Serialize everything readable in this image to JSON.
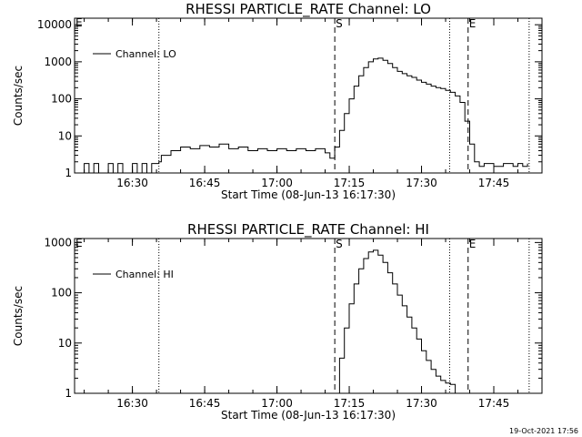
{
  "footer_timestamp": "19-Oct-2021 17:56",
  "chart_data": [
    {
      "type": "line",
      "title": "RHESSI PARTICLE_RATE Channel: LO",
      "xlabel": "Start Time (08-Jun-13 16:17:30)",
      "ylabel": "Counts/sec",
      "yscale": "log",
      "ylim": [
        1,
        15000
      ],
      "xlim": [
        "16:18",
        "17:55"
      ],
      "xticks": [
        "16:30",
        "16:45",
        "17:00",
        "17:15",
        "17:30",
        "17:45"
      ],
      "yticks": [
        "1",
        "10",
        "100",
        "1000",
        "10000"
      ],
      "grid": false,
      "legend": {
        "position": "top-left",
        "entries": [
          "Channel: LO"
        ]
      },
      "markers": [
        {
          "time": "16:35:30",
          "style": "dotted",
          "label": ""
        },
        {
          "time": "17:12:00",
          "style": "dashed",
          "label": "S"
        },
        {
          "time": "17:35:50",
          "style": "dotted",
          "label": ""
        },
        {
          "time": "17:39:40",
          "style": "dashed",
          "label": "E"
        },
        {
          "time": "17:52:20",
          "style": "dotted",
          "label": ""
        }
      ],
      "edge_label": "E",
      "series": [
        {
          "name": "Channel: LO",
          "x": [
            "16:18",
            "16:20",
            "16:21",
            "16:22",
            "16:23",
            "16:24",
            "16:25",
            "16:26",
            "16:27",
            "16:28",
            "16:29",
            "16:30",
            "16:31",
            "16:32",
            "16:33",
            "16:34",
            "16:35",
            "16:35:30",
            "16:36",
            "16:38",
            "16:40",
            "16:42",
            "16:44",
            "16:46",
            "16:48",
            "16:50",
            "16:52",
            "16:54",
            "16:56",
            "16:58",
            "17:00",
            "17:02",
            "17:04",
            "17:06",
            "17:08",
            "17:10",
            "17:11",
            "17:12",
            "17:13",
            "17:14",
            "17:15",
            "17:16",
            "17:17",
            "17:18",
            "17:19",
            "17:20",
            "17:21",
            "17:22",
            "17:23",
            "17:24",
            "17:25",
            "17:26",
            "17:27",
            "17:28",
            "17:29",
            "17:30",
            "17:31",
            "17:32",
            "17:33",
            "17:34",
            "17:35",
            "17:36",
            "17:37",
            "17:38",
            "17:39",
            "17:40",
            "17:41",
            "17:42",
            "17:43",
            "17:44",
            "17:45",
            "17:46",
            "17:47",
            "17:48",
            "17:49",
            "17:50",
            "17:51",
            "17:52"
          ],
          "y": [
            1,
            1.8,
            1,
            1.8,
            1,
            1,
            1.8,
            1,
            1.8,
            1,
            1,
            1.8,
            1,
            1.8,
            1,
            1.8,
            1.8,
            2,
            3,
            4,
            5,
            4.5,
            5.5,
            5,
            6,
            4.5,
            5,
            4,
            4.5,
            4,
            4.5,
            4,
            4.5,
            4,
            4.5,
            3.5,
            2.5,
            5,
            14,
            40,
            100,
            220,
            420,
            700,
            1000,
            1200,
            1250,
            1100,
            900,
            700,
            550,
            480,
            420,
            380,
            320,
            280,
            250,
            220,
            200,
            190,
            170,
            150,
            120,
            80,
            25,
            6,
            2,
            1.5,
            1.8,
            1.8,
            1.5,
            1.5,
            1.8,
            1.8,
            1.5,
            1.8,
            1.5,
            1.8
          ]
        }
      ]
    },
    {
      "type": "line",
      "title": "RHESSI PARTICLE_RATE Channel: HI",
      "xlabel": "Start Time (08-Jun-13 16:17:30)",
      "ylabel": "Counts/sec",
      "yscale": "log",
      "ylim": [
        1,
        1200
      ],
      "xlim": [
        "16:18",
        "17:55"
      ],
      "xticks": [
        "16:30",
        "16:45",
        "17:00",
        "17:15",
        "17:30",
        "17:45"
      ],
      "yticks": [
        "1",
        "10",
        "100",
        "1000"
      ],
      "grid": false,
      "legend": {
        "position": "top-left",
        "entries": [
          "Channel: HI"
        ]
      },
      "markers": [
        {
          "time": "16:35:30",
          "style": "dotted",
          "label": ""
        },
        {
          "time": "17:12:00",
          "style": "dashed",
          "label": "S"
        },
        {
          "time": "17:35:50",
          "style": "dotted",
          "label": ""
        },
        {
          "time": "17:39:40",
          "style": "dashed",
          "label": "E"
        },
        {
          "time": "17:52:20",
          "style": "dotted",
          "label": ""
        }
      ],
      "edge_label": "E",
      "series": [
        {
          "name": "Channel: HI",
          "x": [
            "17:12",
            "17:13",
            "17:14",
            "17:15",
            "17:16",
            "17:17",
            "17:18",
            "17:19",
            "17:20",
            "17:21",
            "17:22",
            "17:23",
            "17:24",
            "17:25",
            "17:26",
            "17:27",
            "17:28",
            "17:29",
            "17:30",
            "17:31",
            "17:32",
            "17:33",
            "17:34",
            "17:35",
            "17:36",
            "17:37"
          ],
          "y": [
            1,
            5,
            20,
            60,
            150,
            300,
            480,
            650,
            700,
            560,
            400,
            250,
            150,
            90,
            55,
            33,
            20,
            12,
            7,
            4.5,
            3,
            2.2,
            1.8,
            1.6,
            1.5,
            1
          ]
        }
      ]
    }
  ]
}
